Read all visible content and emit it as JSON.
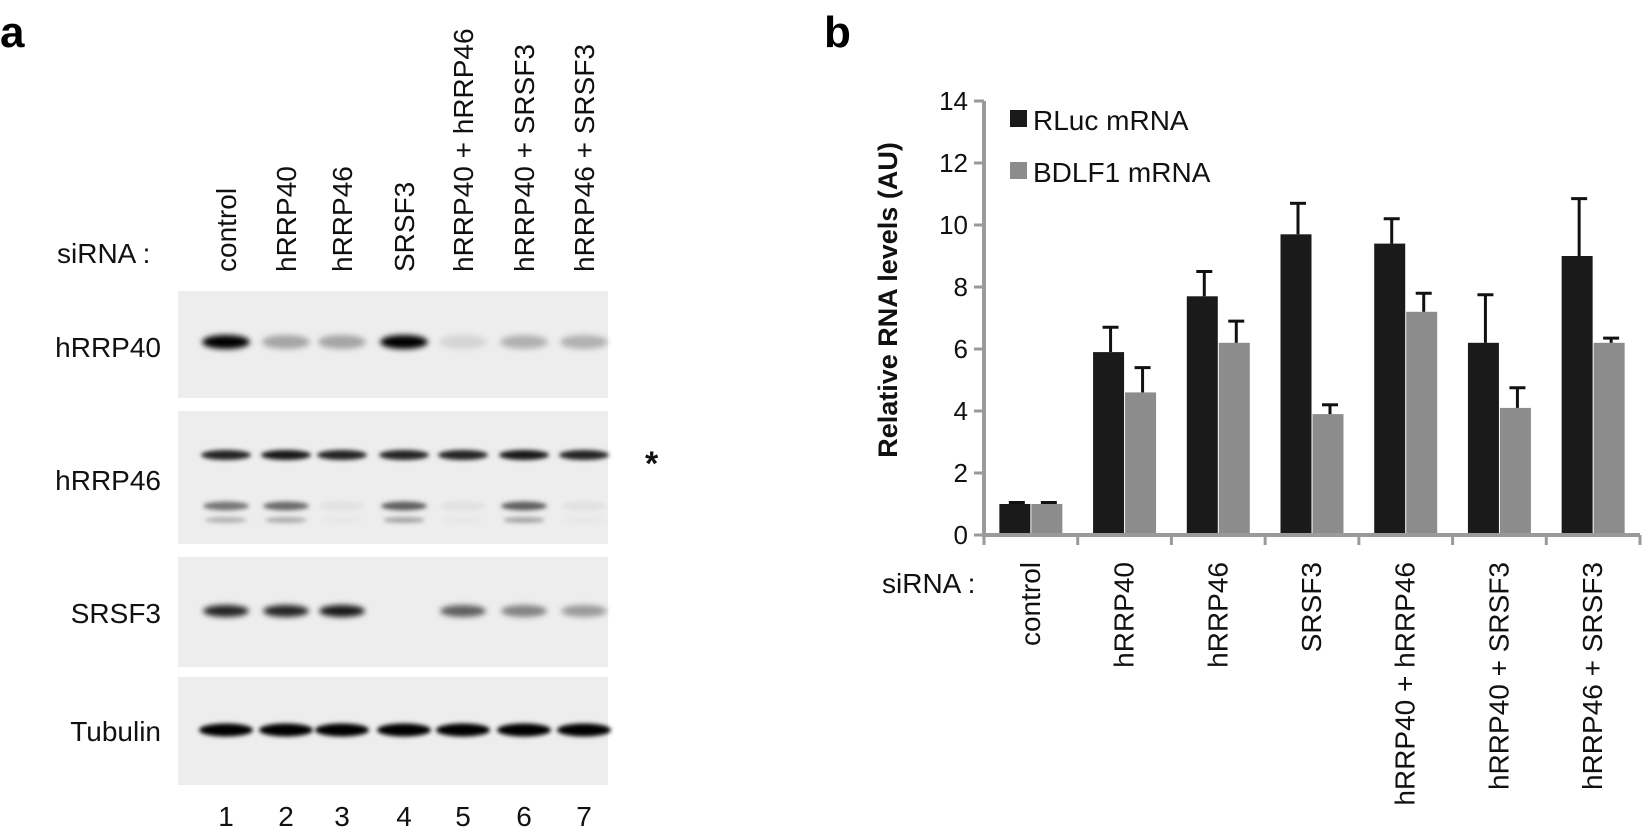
{
  "panel_a": {
    "letter": "a",
    "sirna_label": "siRNA :",
    "lanes": [
      "control",
      "hRRP40",
      "hRRP46",
      "SRSF3",
      "hRRP40 + hRRP46",
      "hRRP40 + SRSF3",
      "hRRP46 + SRSF3"
    ],
    "lane_numbers": [
      "1",
      "2",
      "3",
      "4",
      "5",
      "6",
      "7"
    ],
    "blot_labels": [
      "hRRP40",
      "hRRP46",
      "SRSF3",
      "Tubulin"
    ],
    "nonspecific_marker": "*",
    "band_intensity": {
      "hRRP40": [
        1.0,
        0.3,
        0.3,
        1.0,
        0.1,
        0.25,
        0.25
      ],
      "hRRP46_upper": [
        0.85,
        0.9,
        0.85,
        0.85,
        0.85,
        0.9,
        0.85
      ],
      "hRRP46_lower": [
        0.5,
        0.55,
        0.05,
        0.6,
        0.05,
        0.6,
        0.05
      ],
      "SRSF3": [
        0.85,
        0.85,
        0.9,
        0.0,
        0.6,
        0.45,
        0.35
      ],
      "Tubulin": [
        1.0,
        1.0,
        1.0,
        1.0,
        1.0,
        1.0,
        1.0
      ]
    }
  },
  "panel_b": {
    "letter": "b",
    "sirna_label": "siRNA :",
    "colors": {
      "RLuc mRNA": "#1a1a1a",
      "BDLF1 mRNA": "#8c8c8c",
      "axis": "#9a9a9a"
    },
    "chart_data": {
      "type": "bar",
      "ylabel": "Relative RNA levels (AU)",
      "xlabel": "",
      "ylim": [
        0,
        14
      ],
      "yticks": [
        "0",
        "2",
        "4",
        "6",
        "8",
        "10",
        "12",
        "14"
      ],
      "legend_position": "top-left",
      "categories": [
        "control",
        "hRRP40",
        "hRRP46",
        "SRSF3",
        "hRRP40 + hRRP46",
        "hRRP40 + SRSF3",
        "hRRP46 + SRSF3"
      ],
      "series": [
        {
          "name": "RLuc mRNA",
          "values": [
            1.0,
            5.9,
            7.7,
            9.7,
            9.4,
            6.2,
            9.0
          ],
          "errors": [
            0.05,
            0.8,
            0.8,
            1.0,
            0.8,
            1.55,
            1.85
          ]
        },
        {
          "name": "BDLF1 mRNA",
          "values": [
            1.0,
            4.6,
            6.2,
            3.9,
            7.2,
            4.1,
            6.2
          ],
          "errors": [
            0.05,
            0.8,
            0.7,
            0.3,
            0.6,
            0.65,
            0.15
          ]
        }
      ]
    }
  }
}
